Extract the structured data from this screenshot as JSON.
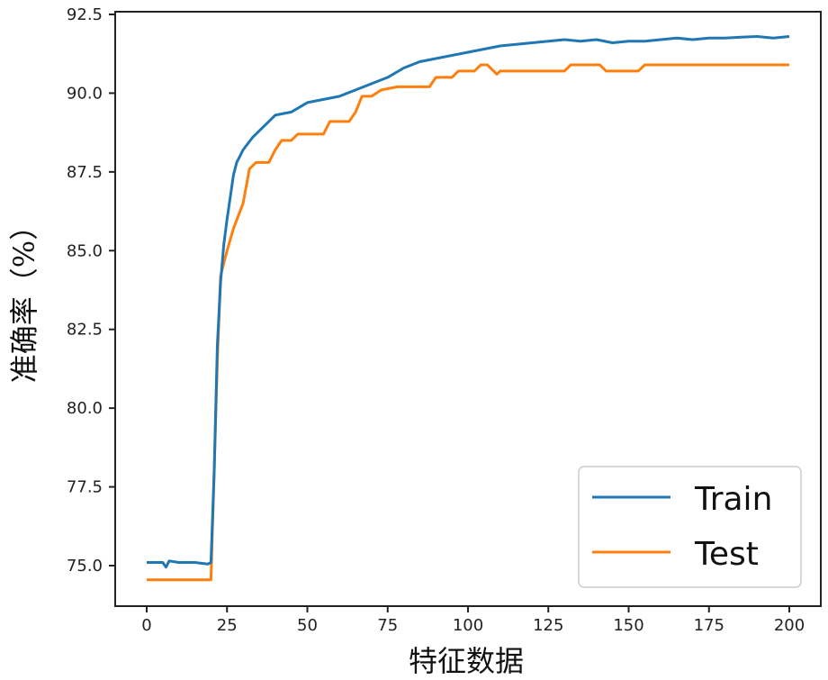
{
  "chart_data": {
    "type": "line",
    "title": "",
    "xlabel": "特征数据",
    "ylabel": "准确率（%）",
    "xlim": [
      -10,
      210
    ],
    "ylim": [
      73.7,
      92.6
    ],
    "xticks": [
      0,
      25,
      50,
      75,
      100,
      125,
      150,
      175,
      200
    ],
    "xtick_labels": [
      "0",
      "25",
      "50",
      "75",
      "100",
      "125",
      "150",
      "175",
      "200"
    ],
    "yticks": [
      75.0,
      77.5,
      80.0,
      82.5,
      85.0,
      87.5,
      90.0,
      92.5
    ],
    "ytick_labels": [
      "75.0",
      "77.5",
      "80.0",
      "82.5",
      "85.0",
      "87.5",
      "90.0",
      "92.5"
    ],
    "grid": false,
    "legend_position": "bottom-right",
    "series": [
      {
        "name": "Train",
        "color": "#1f77b4",
        "x": [
          0,
          5,
          6,
          7,
          10,
          15,
          19,
          20,
          21,
          22,
          23,
          24,
          25,
          27,
          28,
          30,
          33,
          35,
          38,
          40,
          45,
          50,
          55,
          60,
          65,
          70,
          75,
          80,
          85,
          90,
          95,
          100,
          105,
          110,
          115,
          120,
          125,
          130,
          135,
          140,
          145,
          150,
          155,
          160,
          165,
          170,
          175,
          180,
          185,
          190,
          195,
          200
        ],
        "y": [
          75.1,
          75.1,
          74.95,
          75.15,
          75.1,
          75.1,
          75.05,
          75.1,
          78.0,
          82.0,
          84.0,
          85.2,
          86.0,
          87.4,
          87.8,
          88.2,
          88.6,
          88.8,
          89.1,
          89.3,
          89.4,
          89.7,
          89.8,
          89.9,
          90.1,
          90.3,
          90.5,
          90.8,
          91.0,
          91.1,
          91.2,
          91.3,
          91.4,
          91.5,
          91.55,
          91.6,
          91.65,
          91.7,
          91.65,
          91.7,
          91.6,
          91.65,
          91.65,
          91.7,
          91.75,
          91.7,
          91.75,
          91.75,
          91.78,
          91.8,
          91.75,
          91.8
        ]
      },
      {
        "name": "Test",
        "color": "#ff7f0e",
        "x": [
          0,
          20,
          21,
          22,
          23,
          25,
          27,
          30,
          32,
          34,
          38,
          40,
          42,
          45,
          47,
          55,
          57,
          63,
          65,
          67,
          70,
          73,
          78,
          88,
          90,
          95,
          97,
          102,
          104,
          106,
          108,
          109,
          110,
          130,
          132,
          141,
          143,
          153,
          155,
          200
        ],
        "y": [
          74.55,
          74.55,
          78.0,
          81.5,
          84.2,
          85.0,
          85.7,
          86.5,
          87.6,
          87.8,
          87.8,
          88.2,
          88.5,
          88.5,
          88.7,
          88.7,
          89.1,
          89.1,
          89.4,
          89.9,
          89.9,
          90.1,
          90.2,
          90.2,
          90.5,
          90.5,
          90.7,
          90.7,
          90.9,
          90.9,
          90.7,
          90.6,
          90.7,
          90.7,
          90.9,
          90.9,
          90.7,
          90.7,
          90.9,
          90.9
        ]
      }
    ]
  }
}
